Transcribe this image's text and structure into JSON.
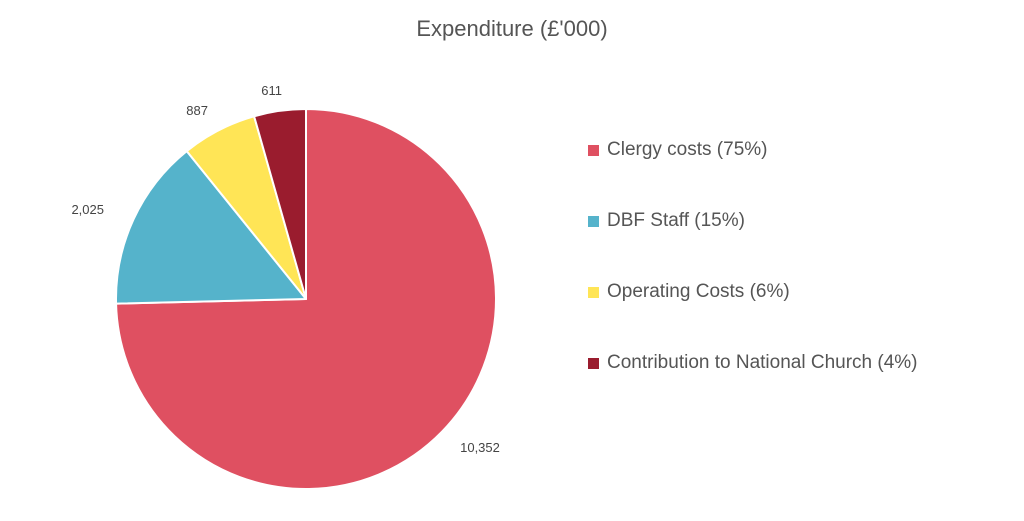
{
  "chart_data": {
    "type": "pie",
    "title": "Expenditure (£'000)",
    "slices": [
      {
        "legend_label": "Clergy costs (75%)",
        "value": 10352,
        "value_label": "10,352",
        "color": "#DF5061"
      },
      {
        "legend_label": "DBF Staff (15%)",
        "value": 2025,
        "value_label": "2,025",
        "color": "#55B3CB"
      },
      {
        "legend_label": "Operating Costs (6%)",
        "value": 887,
        "value_label": "887",
        "color": "#FFE556"
      },
      {
        "legend_label": "Contribution to National Church (4%)",
        "value": 611,
        "value_label": "611",
        "color": "#9A1C2E"
      }
    ],
    "start_angle_deg": 0,
    "direction": "clockwise",
    "legend_position": "right"
  }
}
